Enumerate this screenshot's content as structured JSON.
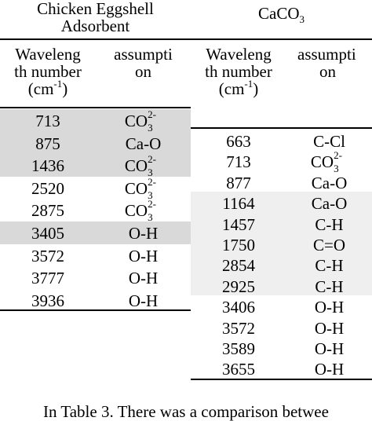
{
  "left_group_title_line1": "Chicken Eggshell",
  "left_group_title_line2": "Adsorbent",
  "right_group_title_base": "CaCO",
  "right_group_title_sub": "3",
  "col_headers": {
    "wave_line1": "Waveleng",
    "wave_line2": "th number",
    "wave_line3_base": "(cm",
    "wave_line3_sup": "-1",
    "wave_line3_end": ")",
    "assump_line1": "assumpti",
    "assump_line2": "on"
  },
  "left_rows": [
    {
      "wave": "713",
      "base": "CO",
      "sub": "3",
      "sup": "2-",
      "shade": true
    },
    {
      "wave": "875",
      "base": "Ca-O",
      "sub": "",
      "sup": "",
      "shade": true
    },
    {
      "wave": "1436",
      "base": "CO",
      "sub": "3",
      "sup": "2-",
      "shade": true
    },
    {
      "wave": "2520",
      "base": "CO",
      "sub": "3",
      "sup": "2-",
      "shade": false
    },
    {
      "wave": "2875",
      "base": "CO",
      "sub": "3",
      "sup": "2-",
      "shade": false
    },
    {
      "wave": "3405",
      "base": "O-H",
      "sub": "",
      "sup": "",
      "shade": true
    },
    {
      "wave": "3572",
      "base": "O-H",
      "sub": "",
      "sup": "",
      "shade": false
    },
    {
      "wave": "3777",
      "base": "O-H",
      "sub": "",
      "sup": "",
      "shade": false
    },
    {
      "wave": "3936",
      "base": "O-H",
      "sub": "",
      "sup": "",
      "shade": false
    }
  ],
  "right_rows": [
    {
      "wave": "663",
      "base": "C-Cl",
      "sub": "",
      "sup": "",
      "shade": false
    },
    {
      "wave": "713",
      "base": "CO",
      "sub": "3",
      "sup": "2-",
      "shade": false
    },
    {
      "wave": "877",
      "base": "Ca-O",
      "sub": "",
      "sup": "",
      "shade": false
    },
    {
      "wave": "1164",
      "base": "Ca-O",
      "sub": "",
      "sup": "",
      "shade": true
    },
    {
      "wave": "1457",
      "base": "C-H",
      "sub": "",
      "sup": "",
      "shade": true
    },
    {
      "wave": "1750",
      "base": "C=O",
      "sub": "",
      "sup": "",
      "shade": true
    },
    {
      "wave": "2854",
      "base": "C-H",
      "sub": "",
      "sup": "",
      "shade": true
    },
    {
      "wave": "2925",
      "base": "C-H",
      "sub": "",
      "sup": "",
      "shade": true
    },
    {
      "wave": "3406",
      "base": "O-H",
      "sub": "",
      "sup": "",
      "shade": false
    },
    {
      "wave": "3572",
      "base": "O-H",
      "sub": "",
      "sup": "",
      "shade": false
    },
    {
      "wave": "3589",
      "base": "O-H",
      "sub": "",
      "sup": "",
      "shade": false
    },
    {
      "wave": "3655",
      "base": "O-H",
      "sub": "",
      "sup": "",
      "shade": false
    }
  ],
  "caption_text": "In Table 3. There was a comparison betwee"
}
